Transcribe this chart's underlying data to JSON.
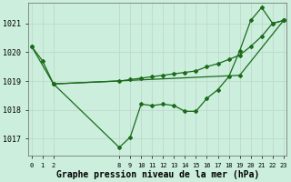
{
  "background_color": "#cceedd",
  "grid_color": "#aaddcc",
  "line_color": "#1a6b1a",
  "xlabel": "Graphe pression niveau de la mer (hPa)",
  "xlabel_fontsize": 7,
  "ytick_labels": [
    1017,
    1018,
    1019,
    1020,
    1021
  ],
  "xtick_vals": [
    0,
    1,
    2,
    8,
    9,
    10,
    11,
    12,
    13,
    14,
    15,
    16,
    17,
    18,
    19,
    20,
    21,
    22,
    23
  ],
  "ylim": [
    1016.4,
    1021.7
  ],
  "xlim": [
    -0.3,
    23.3
  ],
  "series1_x": [
    0,
    1,
    2,
    8,
    9,
    10,
    11,
    12,
    13,
    14,
    15,
    16,
    17,
    18,
    19,
    20,
    21,
    22,
    23
  ],
  "series1_y": [
    1020.2,
    1019.7,
    1018.9,
    1016.7,
    1017.05,
    1018.2,
    1018.15,
    1018.2,
    1018.15,
    1017.95,
    1017.95,
    1018.4,
    1018.7,
    1019.15,
    1020.05,
    1021.1,
    1021.55,
    1021.0,
    1021.1
  ],
  "series2_x": [
    0,
    2,
    19,
    23
  ],
  "series2_y": [
    1020.2,
    1018.9,
    1019.2,
    1021.1
  ],
  "series3_x": [
    2,
    8,
    9,
    10,
    11,
    12,
    13,
    14,
    15,
    16,
    17,
    18,
    19,
    20,
    21,
    22,
    23
  ],
  "series3_y": [
    1018.9,
    1019.0,
    1019.05,
    1019.1,
    1019.15,
    1019.2,
    1019.25,
    1019.3,
    1019.35,
    1019.5,
    1019.6,
    1019.75,
    1019.9,
    1020.2,
    1020.55,
    1021.0,
    1021.1
  ],
  "marker": "D",
  "markersize": 2.0,
  "linewidth": 0.9
}
